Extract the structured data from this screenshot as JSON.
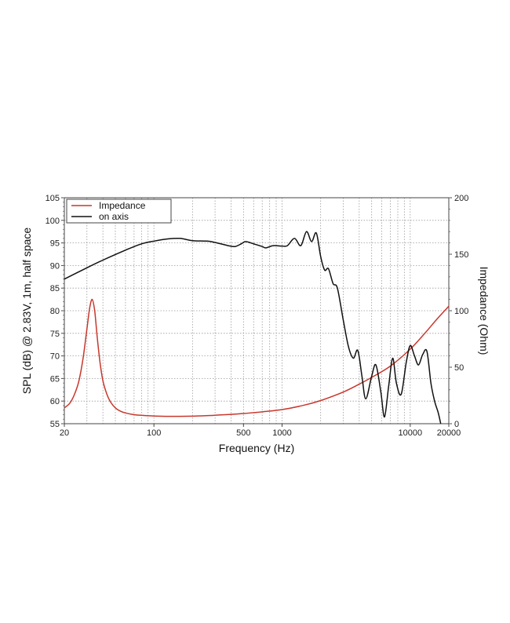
{
  "chart_data": {
    "type": "line",
    "title": "",
    "xlabel": "Frequency (Hz)",
    "ylabel": "SPL (dB) @ 2.83V, 1m, half space",
    "y2label": "Impedance (Ohm)",
    "xscale": "log",
    "xlim": [
      20,
      20000
    ],
    "ylim": [
      55,
      105
    ],
    "y2lim": [
      0,
      200
    ],
    "grid": true,
    "legend_position": "upper-left",
    "x_ticks": [
      {
        "value": 20,
        "label": "20"
      },
      {
        "value": 100,
        "label": "100"
      },
      {
        "value": 500,
        "label": "500"
      },
      {
        "value": 1000,
        "label": "1000"
      },
      {
        "value": 10000,
        "label": "10000"
      },
      {
        "value": 20000,
        "label": "20000"
      }
    ],
    "x_minor_grid": [
      30,
      40,
      50,
      60,
      70,
      80,
      90,
      100,
      200,
      300,
      400,
      500,
      600,
      700,
      800,
      900,
      1000,
      2000,
      3000,
      4000,
      5000,
      6000,
      7000,
      8000,
      9000,
      10000
    ],
    "y_ticks": [
      "55",
      "60",
      "65",
      "70",
      "75",
      "80",
      "85",
      "90",
      "95",
      "100",
      "105"
    ],
    "y2_ticks": [
      "0",
      "50",
      "100",
      "150",
      "200"
    ],
    "series": [
      {
        "name": "Impedance",
        "axis": "right",
        "color": "#c8372d",
        "x": [
          20,
          22,
          24,
          26,
          28,
          30,
          31.5,
          33,
          34.5,
          36,
          38,
          40,
          43,
          46,
          50,
          55,
          60,
          70,
          80,
          100,
          130,
          160,
          200,
          300,
          500,
          700,
          1000,
          1500,
          2000,
          3000,
          4000,
          5000,
          7000,
          10000,
          13000,
          16000,
          20000
        ],
        "values": [
          14,
          18,
          26,
          38,
          58,
          84,
          102,
          110,
          100,
          78,
          54,
          38,
          26,
          19,
          14,
          11,
          9.5,
          8,
          7.4,
          6.8,
          6.5,
          6.5,
          6.7,
          7.5,
          9,
          10.5,
          12.5,
          16.5,
          20.5,
          28,
          35,
          41,
          51,
          66,
          80,
          92,
          104
        ]
      },
      {
        "name": "on axis",
        "axis": "left",
        "color": "#111111",
        "x": [
          20,
          30,
          40,
          60,
          80,
          100,
          130,
          160,
          200,
          260,
          300,
          380,
          430,
          480,
          520,
          600,
          700,
          750,
          850,
          1000,
          1100,
          1250,
          1400,
          1550,
          1700,
          1850,
          2000,
          2150,
          2300,
          2500,
          2700,
          3000,
          3300,
          3600,
          3900,
          4200,
          4500,
          5000,
          5400,
          5900,
          6300,
          6800,
          7300,
          7800,
          8500,
          9300,
          10000,
          10800,
          11600,
          12500,
          13500,
          14500,
          15500,
          16500,
          17300
        ],
        "values": [
          87,
          89.5,
          91.2,
          93.4,
          94.8,
          95.4,
          95.9,
          96.0,
          95.5,
          95.4,
          95.1,
          94.4,
          94.2,
          94.8,
          95.3,
          94.8,
          94.2,
          93.9,
          94.4,
          94.3,
          94.4,
          96.0,
          94.4,
          97.5,
          95.3,
          97.2,
          92.0,
          89.0,
          89.3,
          86.0,
          85.0,
          78.0,
          72.0,
          69.5,
          71.2,
          65.5,
          60.5,
          65.5,
          68.0,
          62.0,
          56.5,
          63.5,
          69.5,
          64.0,
          61.5,
          68.5,
          72.3,
          70.0,
          68.0,
          70.3,
          71.0,
          64.0,
          60.0,
          57.5,
          55.0
        ]
      }
    ]
  }
}
